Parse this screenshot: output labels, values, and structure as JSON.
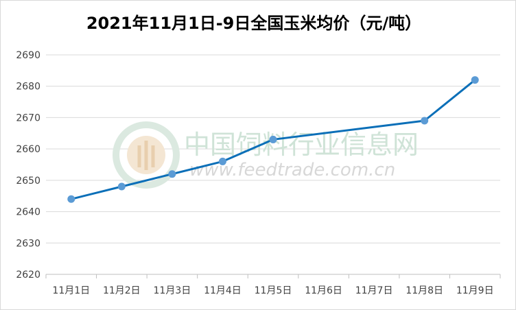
{
  "chart_data": {
    "type": "line",
    "title": "2021年11月1日-9日全国玉米均价（元/吨）",
    "categories": [
      "11月1日",
      "11月2日",
      "11月3日",
      "11月4日",
      "11月5日",
      "11月6日",
      "11月7日",
      "11月8日",
      "11月9日"
    ],
    "series": [
      {
        "values": [
          2644,
          2648,
          2652,
          2656,
          2663,
          null,
          null,
          2669,
          2682
        ]
      }
    ],
    "ylim": [
      2620,
      2690
    ],
    "yticks": [
      "2620",
      "2630",
      "2640",
      "2650",
      "2660",
      "2670",
      "2680",
      "2690"
    ],
    "grid": true,
    "legend": "none",
    "line_color": "#0b6fb8",
    "marker_color": "#5b9bd5"
  },
  "watermark": {
    "text": "中国饲料行业信息网",
    "url": "www.feedtrade.com.cn",
    "color": "#cfe3d7"
  }
}
